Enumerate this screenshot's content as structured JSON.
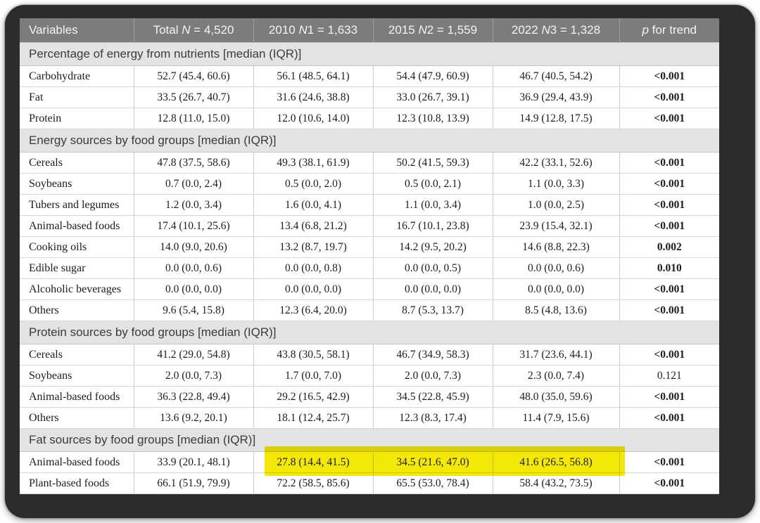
{
  "colors": {
    "frame_bg": "#2c2c2d",
    "header_bg": "#7b7c7e",
    "header_text": "#f4f4f4",
    "section_bg": "#e3e3e4",
    "data_text": "#1c1c1c",
    "highlight_yellow": "#f4e906"
  },
  "table": {
    "header": {
      "columns": [
        {
          "pre": "Variables",
          "italic": "",
          "post": ""
        },
        {
          "pre": "Total ",
          "italic": "N",
          "post": " = 4,520"
        },
        {
          "pre": "2010 ",
          "italic": "N",
          "post": "1 = 1,633"
        },
        {
          "pre": "2015 ",
          "italic": "N",
          "post": "2 = 1,559"
        },
        {
          "pre": "2022 ",
          "italic": "N",
          "post": "3 = 1,328"
        },
        {
          "pre": "",
          "italic": "p",
          "post": " for trend"
        }
      ]
    },
    "sections": [
      {
        "title": "Percentage of energy from nutrients [median (IQR)]",
        "rows": [
          {
            "variable": "Carbohydrate",
            "total": "52.7 (45.4, 60.6)",
            "y2010": "56.1 (48.5, 64.1)",
            "y2015": "54.4 (47.9, 60.9)",
            "y2022": "46.7 (40.5, 54.2)",
            "p": "<0.001",
            "p_bold": true,
            "highlight": false
          },
          {
            "variable": "Fat",
            "total": "33.5 (26.7, 40.7)",
            "y2010": "31.6 (24.6, 38.8)",
            "y2015": "33.0 (26.7, 39.1)",
            "y2022": "36.9 (29.4, 43.9)",
            "p": "<0.001",
            "p_bold": true,
            "highlight": false
          },
          {
            "variable": "Protein",
            "total": "12.8 (11.0, 15.0)",
            "y2010": "12.0 (10.6, 14.0)",
            "y2015": "12.3 (10.8, 13.9)",
            "y2022": "14.9 (12.8, 17.5)",
            "p": "<0.001",
            "p_bold": true,
            "highlight": false
          }
        ]
      },
      {
        "title": "Energy sources by food groups [median (IQR)]",
        "rows": [
          {
            "variable": "Cereals",
            "total": "47.8 (37.5, 58.6)",
            "y2010": "49.3 (38.1, 61.9)",
            "y2015": "50.2 (41.5, 59.3)",
            "y2022": "42.2 (33.1, 52.6)",
            "p": "<0.001",
            "p_bold": true,
            "highlight": false
          },
          {
            "variable": "Soybeans",
            "total": "0.7 (0.0, 2.4)",
            "y2010": "0.5 (0.0, 2.0)",
            "y2015": "0.5 (0.0, 2.1)",
            "y2022": "1.1 (0.0, 3.3)",
            "p": "<0.001",
            "p_bold": true,
            "highlight": false
          },
          {
            "variable": "Tubers and legumes",
            "total": "1.2 (0.0, 3.4)",
            "y2010": "1.6 (0.0, 4.1)",
            "y2015": "1.1 (0.0, 3.4)",
            "y2022": "1.0 (0.0, 2.5)",
            "p": "<0.001",
            "p_bold": true,
            "highlight": false
          },
          {
            "variable": "Animal-based foods",
            "total": "17.4 (10.1, 25.6)",
            "y2010": "13.4 (6.8, 21.2)",
            "y2015": "16.7 (10.1, 23.8)",
            "y2022": "23.9 (15.4, 32.1)",
            "p": "<0.001",
            "p_bold": true,
            "highlight": false
          },
          {
            "variable": "Cooking oils",
            "total": "14.0 (9.0, 20.6)",
            "y2010": "13.2 (8.7, 19.7)",
            "y2015": "14.2 (9.5, 20.2)",
            "y2022": "14.6 (8.8, 22.3)",
            "p": "0.002",
            "p_bold": true,
            "highlight": false
          },
          {
            "variable": "Edible sugar",
            "total": "0.0 (0.0, 0.6)",
            "y2010": "0.0 (0.0, 0.8)",
            "y2015": "0.0 (0.0, 0.5)",
            "y2022": "0.0 (0.0, 0.6)",
            "p": "0.010",
            "p_bold": true,
            "highlight": false
          },
          {
            "variable": "Alcoholic beverages",
            "total": "0.0 (0.0, 0.0)",
            "y2010": "0.0 (0.0, 0.0)",
            "y2015": "0.0 (0.0, 0.0)",
            "y2022": "0.0 (0.0, 0.0)",
            "p": "<0.001",
            "p_bold": true,
            "highlight": false
          },
          {
            "variable": "Others",
            "total": "9.6 (5.4, 15.8)",
            "y2010": "12.3 (6.4, 20.0)",
            "y2015": "8.7 (5.3, 13.7)",
            "y2022": "8.5 (4.8, 13.6)",
            "p": "<0.001",
            "p_bold": true,
            "highlight": false
          }
        ]
      },
      {
        "title": "Protein sources by food groups [median (IQR)]",
        "rows": [
          {
            "variable": "Cereals",
            "total": "41.2 (29.0, 54.8)",
            "y2010": "43.8 (30.5, 58.1)",
            "y2015": "46.7 (34.9, 58.3)",
            "y2022": "31.7 (23.6, 44.1)",
            "p": "<0.001",
            "p_bold": true,
            "highlight": false
          },
          {
            "variable": "Soybeans",
            "total": "2.0 (0.0, 7.3)",
            "y2010": "1.7 (0.0, 7.0)",
            "y2015": "2.0 (0.0, 7.3)",
            "y2022": "2.3 (0.0, 7.4)",
            "p": "0.121",
            "p_bold": false,
            "highlight": false
          },
          {
            "variable": "Animal-based foods",
            "total": "36.3 (22.8, 49.4)",
            "y2010": "29.2 (16.5, 42.9)",
            "y2015": "34.5 (22.8, 45.9)",
            "y2022": "48.0 (35.0, 59.6)",
            "p": "<0.001",
            "p_bold": true,
            "highlight": false
          },
          {
            "variable": "Others",
            "total": "13.6 (9.2, 20.1)",
            "y2010": "18.1 (12.4, 25.7)",
            "y2015": "12.3 (8.3, 17.4)",
            "y2022": "11.4 (7.9, 15.6)",
            "p": "<0.001",
            "p_bold": true,
            "highlight": false
          }
        ]
      },
      {
        "title": "Fat sources by food groups [median (IQR)]",
        "rows": [
          {
            "variable": "Animal-based foods",
            "total": "33.9 (20.1, 48.1)",
            "y2010": "27.8 (14.4, 41.5)",
            "y2015": "34.5 (21.6, 47.0)",
            "y2022": "41.6 (26.5, 56.8)",
            "p": "<0.001",
            "p_bold": true,
            "highlight": true
          },
          {
            "variable": "Plant-based foods",
            "total": "66.1 (51.9, 79.9)",
            "y2010": "72.2 (58.5, 85.6)",
            "y2015": "65.5 (53.0, 78.4)",
            "y2022": "58.4 (43.2, 73.5)",
            "p": "<0.001",
            "p_bold": true,
            "highlight": false
          }
        ]
      }
    ]
  }
}
